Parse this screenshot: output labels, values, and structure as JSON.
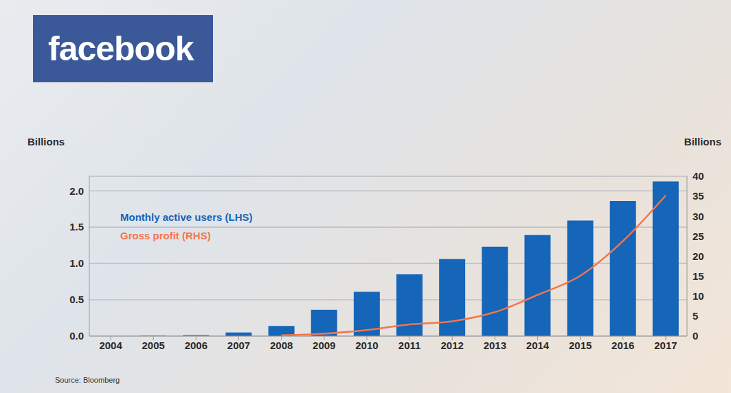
{
  "chart_data": {
    "type": "bar",
    "title": "facebook",
    "y_label": "Billions",
    "y2_label": "Billions",
    "source": "Source: Bloomberg",
    "categories": [
      "2004",
      "2005",
      "2006",
      "2007",
      "2008",
      "2009",
      "2010",
      "2011",
      "2012",
      "2013",
      "2014",
      "2015",
      "2016",
      "2017"
    ],
    "series": [
      {
        "name": "Monthly active users (LHS)",
        "type": "bar",
        "color": "#1565b8",
        "values": [
          0.001,
          0.0055,
          0.012,
          0.05,
          0.14,
          0.36,
          0.61,
          0.85,
          1.06,
          1.23,
          1.39,
          1.59,
          1.86,
          2.13
        ]
      },
      {
        "name": "Gross profit (RHS)",
        "type": "line",
        "axis": "y2",
        "color": "#f2764a",
        "values": [
          null,
          null,
          null,
          null,
          0.2,
          0.6,
          1.5,
          2.9,
          3.7,
          6.0,
          10.3,
          15.1,
          23.8,
          35.2
        ]
      }
    ],
    "ylim": [
      0,
      2.2
    ],
    "yticks": [
      {
        "value": 0,
        "label": "0.0"
      },
      {
        "value": 0.5,
        "label": "0.5"
      },
      {
        "value": 1,
        "label": "1.0"
      },
      {
        "value": 1.5,
        "label": "1.5"
      },
      {
        "value": 2,
        "label": "2.0"
      }
    ],
    "y2lim": [
      0,
      40
    ],
    "y2ticks": [
      0,
      5,
      10,
      15,
      20,
      25,
      30,
      35,
      40
    ],
    "grid": true,
    "legend": "upper left"
  }
}
